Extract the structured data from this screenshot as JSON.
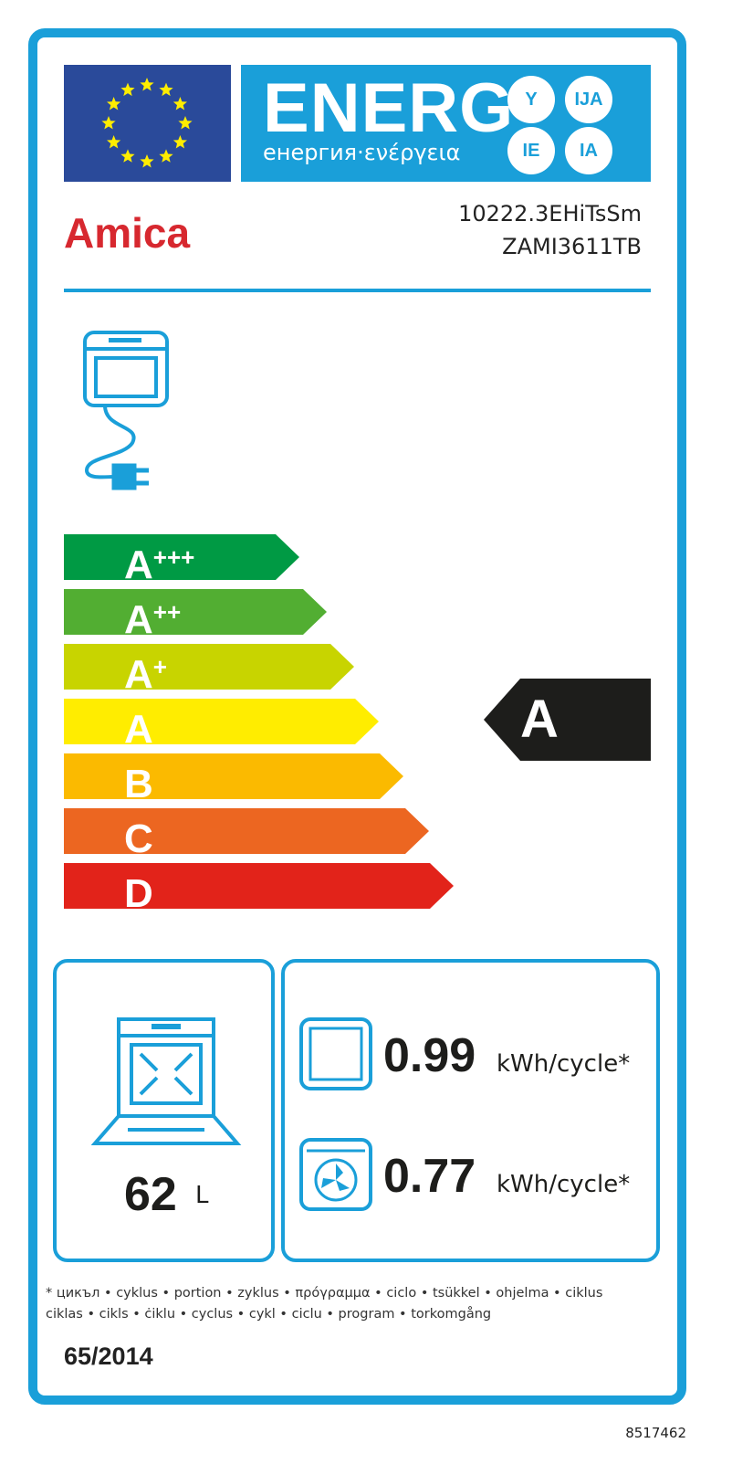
{
  "header": {
    "energy_word": "ENERG",
    "energy_translations": "енергия·ενέργεια",
    "suffixes": [
      "Y",
      "IJA",
      "IE",
      "IA"
    ]
  },
  "supplier": {
    "brand": "Amica",
    "model_1": "10222.3EHiTsSm",
    "model_2": "ZAMI3611TB"
  },
  "scale": {
    "classes": [
      {
        "label": "A",
        "plus": "+++",
        "color": "#009a44"
      },
      {
        "label": "A",
        "plus": "++",
        "color": "#52ae32"
      },
      {
        "label": "A",
        "plus": "+",
        "color": "#c8d400"
      },
      {
        "label": "A",
        "plus": "",
        "color": "#ffed00"
      },
      {
        "label": "B",
        "plus": "",
        "color": "#fbba00"
      },
      {
        "label": "C",
        "plus": "",
        "color": "#ec6621"
      },
      {
        "label": "D",
        "plus": "",
        "color": "#e2231a"
      }
    ],
    "rating": "A"
  },
  "volume": {
    "value": "62",
    "unit": "L"
  },
  "consumption": [
    {
      "mode": "conventional",
      "value": "0.99",
      "unit": "kWh/cycle*"
    },
    {
      "mode": "fan-forced",
      "value": "0.77",
      "unit": "kWh/cycle*"
    }
  ],
  "footnote": {
    "line1": "* цикъл • cyklus • portion • zyklus • πρόγραμμα • ciclo • tsükkel • ohjelma • ciklus",
    "line2": "ciklas • cikls • ċiklu • cyclus • cykl • ciclu • program • torkomgång"
  },
  "regulation": "65/2014",
  "label_code": "8517462",
  "colors": {
    "frame": "#1a9fd9",
    "brand": "#d7282f",
    "flag": "#2a4a9a",
    "stars": "#ffed00"
  }
}
